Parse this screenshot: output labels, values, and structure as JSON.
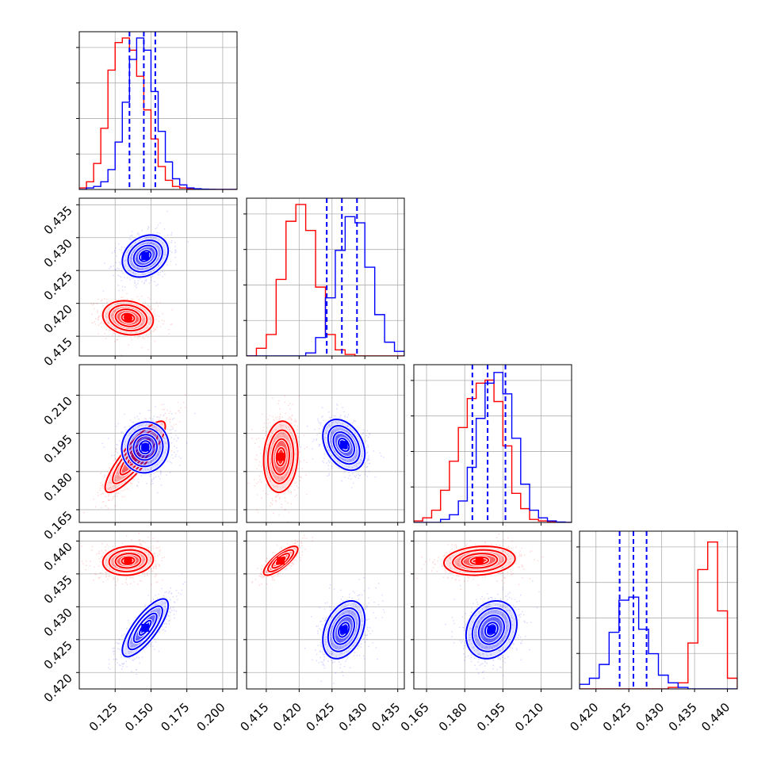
{
  "chart_data": {
    "type": "corner",
    "grid": true,
    "series": [
      {
        "name": "",
        "color": "#ff0000"
      },
      {
        "name": "",
        "color": "#0000ff"
      }
    ],
    "params": [
      {
        "range": [
          0.1,
          0.21
        ],
        "ticks": [
          0.125,
          0.15,
          0.175,
          0.2
        ],
        "tick_labels": [
          "0.125",
          "0.150",
          "0.175",
          "0.200"
        ]
      },
      {
        "range": [
          0.412,
          0.436
        ],
        "ticks": [
          0.415,
          0.42,
          0.425,
          0.43,
          0.435
        ],
        "tick_labels": [
          "0.415",
          "0.420",
          "0.425",
          "0.430",
          "0.435"
        ]
      },
      {
        "range": [
          0.16,
          0.222
        ],
        "ticks": [
          0.165,
          0.18,
          0.195,
          0.21
        ],
        "tick_labels": [
          "0.165",
          "0.180",
          "0.195",
          "0.210"
        ]
      },
      {
        "range": [
          0.4175,
          0.4415
        ],
        "ticks": [
          0.42,
          0.425,
          0.43,
          0.435,
          0.44
        ],
        "tick_labels": [
          "0.420",
          "0.425",
          "0.430",
          "0.435",
          "0.440"
        ]
      }
    ],
    "quantile_lines_blue": [
      [
        0.135,
        0.145,
        0.153
      ],
      [
        0.4242,
        0.4265,
        0.4288
      ],
      [
        0.183,
        0.189,
        0.196
      ],
      [
        0.4236,
        0.4257,
        0.4277
      ]
    ],
    "hist_bins": [
      [
        0.1,
        0.105,
        0.11,
        0.115,
        0.12,
        0.125,
        0.13,
        0.135,
        0.14,
        0.145,
        0.15,
        0.155,
        0.16,
        0.165,
        0.17,
        0.175,
        0.18,
        0.185,
        0.19,
        0.195,
        0.2,
        0.205,
        0.21
      ],
      [
        0.412,
        0.4135,
        0.415,
        0.4165,
        0.418,
        0.4195,
        0.421,
        0.4225,
        0.424,
        0.4255,
        0.427,
        0.4285,
        0.43,
        0.4315,
        0.433,
        0.4345,
        0.436
      ],
      [
        0.16,
        0.1635,
        0.167,
        0.1705,
        0.174,
        0.1775,
        0.181,
        0.1845,
        0.188,
        0.1915,
        0.195,
        0.1985,
        0.202,
        0.2055,
        0.209,
        0.2125,
        0.216,
        0.2195,
        0.222
      ],
      [
        0.4175,
        0.419,
        0.4205,
        0.422,
        0.4235,
        0.425,
        0.4265,
        0.428,
        0.4295,
        0.431,
        0.4325,
        0.434,
        0.4355,
        0.437,
        0.4385,
        0.44,
        0.4415
      ]
    ],
    "hist_red": [
      [
        0.01,
        0.05,
        0.17,
        0.4,
        0.78,
        0.96,
        0.99,
        0.91,
        0.74,
        0.52,
        0.33,
        0.15,
        0.06,
        0.02,
        0.01,
        0.004,
        0.002,
        0.001,
        0.001,
        0,
        0,
        0
      ],
      [
        0,
        0.05,
        0.14,
        0.5,
        0.88,
        0.99,
        0.82,
        0.45,
        0.14,
        0.04,
        0.01,
        0,
        0,
        0,
        0,
        0
      ],
      [
        0.01,
        0.03,
        0.08,
        0.21,
        0.4,
        0.62,
        0.81,
        0.91,
        0.93,
        0.79,
        0.5,
        0.19,
        0.09,
        0.02,
        0.01,
        0.005,
        0,
        0
      ],
      [
        0,
        0,
        0,
        0,
        0,
        0,
        0,
        0,
        0,
        0.01,
        0.04,
        0.3,
        0.78,
        0.96,
        0.51,
        0.07
      ]
    ],
    "hist_blue": [
      [
        0,
        0.01,
        0.02,
        0.05,
        0.13,
        0.31,
        0.57,
        0.85,
        0.99,
        0.91,
        0.64,
        0.38,
        0.18,
        0.07,
        0.03,
        0.01,
        0.005,
        0.002,
        0.001,
        0,
        0,
        0
      ],
      [
        0,
        0,
        0,
        0,
        0,
        0,
        0.02,
        0.12,
        0.38,
        0.69,
        0.91,
        0.87,
        0.58,
        0.27,
        0.09,
        0.03
      ],
      [
        0,
        0,
        0,
        0.02,
        0.05,
        0.14,
        0.36,
        0.68,
        0.91,
        0.98,
        0.84,
        0.55,
        0.25,
        0.08,
        0.03,
        0.01,
        0.003,
        0
      ],
      [
        0.03,
        0.07,
        0.16,
        0.37,
        0.58,
        0.6,
        0.39,
        0.23,
        0.09,
        0.04,
        0.01,
        0,
        0,
        0,
        0,
        0
      ]
    ],
    "scatter_clusters": [
      {
        "row": 1,
        "col": 0,
        "red": {
          "mx": 0.134,
          "my": 0.4178,
          "sx": 0.0088,
          "sy": 0.0013,
          "rho": -0.15
        },
        "blue": {
          "mx": 0.146,
          "my": 0.4272,
          "sx": 0.008,
          "sy": 0.0016,
          "rho": 0.25
        }
      },
      {
        "row": 2,
        "col": 0,
        "red": {
          "mx": 0.139,
          "my": 0.1858,
          "sx": 0.0105,
          "sy": 0.007,
          "rho": 0.86
        },
        "blue": {
          "mx": 0.146,
          "my": 0.1895,
          "sx": 0.0082,
          "sy": 0.005,
          "rho": 0.05
        }
      },
      {
        "row": 2,
        "col": 1,
        "red": {
          "mx": 0.4172,
          "my": 0.1858,
          "sx": 0.0013,
          "sy": 0.007,
          "rho": 0.1
        },
        "blue": {
          "mx": 0.4268,
          "my": 0.1905,
          "sx": 0.0016,
          "sy": 0.005,
          "rho": -0.35
        }
      },
      {
        "row": 3,
        "col": 0,
        "red": {
          "mx": 0.134,
          "my": 0.437,
          "sx": 0.0088,
          "sy": 0.0011,
          "rho": 0.1
        },
        "blue": {
          "mx": 0.146,
          "my": 0.4268,
          "sx": 0.008,
          "sy": 0.0022,
          "rho": 0.78
        }
      },
      {
        "row": 3,
        "col": 1,
        "red": {
          "mx": 0.4172,
          "my": 0.437,
          "sx": 0.0013,
          "sy": 0.0011,
          "rho": 0.8
        },
        "blue": {
          "mx": 0.4268,
          "my": 0.4265,
          "sx": 0.0016,
          "sy": 0.0022,
          "rho": 0.35
        }
      },
      {
        "row": 3,
        "col": 2,
        "red": {
          "mx": 0.1858,
          "my": 0.437,
          "sx": 0.007,
          "sy": 0.0011,
          "rho": 0.15
        },
        "blue": {
          "mx": 0.1905,
          "my": 0.4265,
          "sx": 0.005,
          "sy": 0.0022,
          "rho": 0.2
        }
      }
    ]
  }
}
